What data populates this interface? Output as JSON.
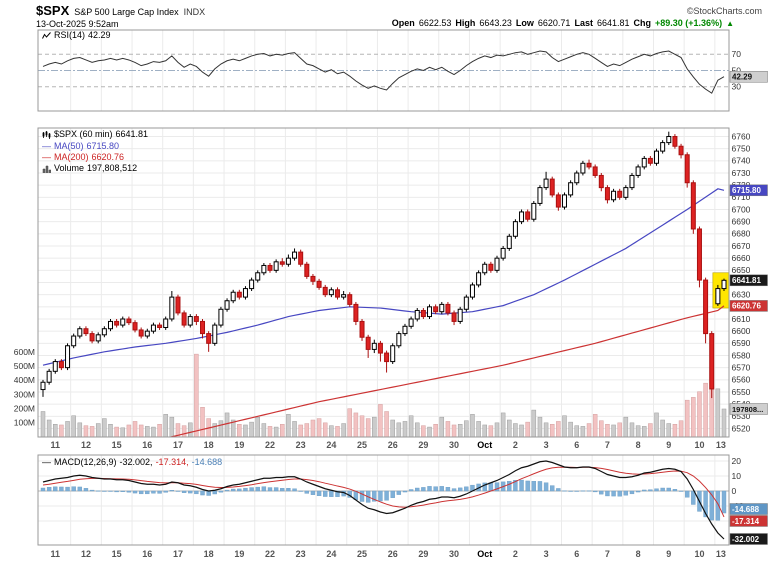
{
  "header": {
    "symbol": "$SPX",
    "name": "S&P 500 Large Cap Index",
    "exchange": "INDX",
    "datetime": "13-Oct-2025 9:52am",
    "copyright": "©StockCharts.com",
    "quote": {
      "open_label": "Open",
      "open": "6622.53",
      "high_label": "High",
      "high": "6643.23",
      "low_label": "Low",
      "low": "6620.71",
      "last_label": "Last",
      "last": "6641.81",
      "chg_label": "Chg",
      "chg": "+89.30 (+1.36%)",
      "direction": "▲"
    }
  },
  "legends": {
    "rsi": {
      "label": "RSI(14)",
      "value": "42.29"
    },
    "price": {
      "symbol": "$SPX (60 min)",
      "value": "6641.81"
    },
    "ma50": {
      "dash": "—",
      "label": "MA(50)",
      "value": "6715.80"
    },
    "ma200": {
      "dash": "—",
      "label": "MA(200)",
      "value": "6620.76"
    },
    "volume": {
      "label": "Volume",
      "value": "197,808,512"
    },
    "macd": {
      "dash": "—",
      "label": "MACD(12,26,9)",
      "macd_value": "-32.002,",
      "signal_value": "-17.314,",
      "hist_value": "-14.688"
    }
  },
  "badges": {
    "rsi": "42.29",
    "ma50": "6715.80",
    "last": "6641.81",
    "ma200": "6620.76",
    "volume": "197808...",
    "macd_hist": "-14.688",
    "macd_signal": "-17.314",
    "macd_line": "-32.002"
  },
  "colors": {
    "axis_text": "#333333",
    "grid": "#ebebeb",
    "panel_border": "#999999",
    "ma50": "#4747c2",
    "ma200": "#cc3333",
    "down_fill": "#dd2222",
    "down_stroke": "#aa1111",
    "vol_up": "#cbcbcb",
    "vol_down": "#f2c2c2",
    "hist": "#7fb0d8",
    "hist_stroke": "#6b9dc4",
    "hist_badge": "#5f96c5",
    "badge_gray": "#cfcfcf",
    "highlight": "#ffe600",
    "chg_green": "#008800"
  },
  "chart_data": {
    "bars_per_day": 5,
    "x_labels": [
      "11",
      "12",
      "15",
      "16",
      "17",
      "18",
      "19",
      "22",
      "23",
      "24",
      "25",
      "26",
      "29",
      "30",
      "Oct",
      "2",
      "3",
      "6",
      "7",
      "8",
      "9",
      "10",
      "13"
    ],
    "axes": {
      "price_min": 6513,
      "price_max": 6767,
      "volume_max": 600,
      "rsi_range": [
        0,
        100
      ],
      "macd_range": [
        -36,
        24
      ]
    },
    "price": {
      "type": "candlestick",
      "interval": "60 min",
      "candles": [
        [
          6552,
          6560,
          6546,
          6558
        ],
        [
          6558,
          6569,
          6556,
          6567
        ],
        [
          6567,
          6577,
          6565,
          6575
        ],
        [
          6575,
          6577,
          6568,
          6570
        ],
        [
          6570,
          6590,
          6568,
          6588
        ],
        [
          6588,
          6598,
          6586,
          6596
        ],
        [
          6596,
          6604,
          6594,
          6602
        ],
        [
          6602,
          6604,
          6596,
          6598
        ],
        [
          6598,
          6600,
          6590,
          6592
        ],
        [
          6592,
          6599,
          6590,
          6597
        ],
        [
          6597,
          6604,
          6595,
          6602
        ],
        [
          6602,
          6610,
          6600,
          6608
        ],
        [
          6608,
          6610,
          6603,
          6605
        ],
        [
          6605,
          6612,
          6603,
          6610
        ],
        [
          6610,
          6612,
          6605,
          6607
        ],
        [
          6607,
          6609,
          6599,
          6601
        ],
        [
          6601,
          6603,
          6594,
          6596
        ],
        [
          6596,
          6602,
          6594,
          6600
        ],
        [
          6600,
          6607,
          6598,
          6605
        ],
        [
          6605,
          6607,
          6601,
          6603
        ],
        [
          6603,
          6612,
          6601,
          6610
        ],
        [
          6610,
          6633,
          6608,
          6628
        ],
        [
          6628,
          6630,
          6613,
          6615
        ],
        [
          6615,
          6617,
          6603,
          6605
        ],
        [
          6605,
          6614,
          6603,
          6612
        ],
        [
          6612,
          6614,
          6605,
          6608
        ],
        [
          6608,
          6610,
          6594,
          6598
        ],
        [
          6598,
          6600,
          6583,
          6590
        ],
        [
          6590,
          6607,
          6588,
          6605
        ],
        [
          6605,
          6620,
          6603,
          6618
        ],
        [
          6618,
          6627,
          6616,
          6625
        ],
        [
          6625,
          6634,
          6623,
          6632
        ],
        [
          6632,
          6634,
          6626,
          6628
        ],
        [
          6628,
          6637,
          6626,
          6635
        ],
        [
          6635,
          6644,
          6633,
          6642
        ],
        [
          6642,
          6650,
          6640,
          6648
        ],
        [
          6648,
          6656,
          6646,
          6654
        ],
        [
          6654,
          6656,
          6648,
          6650
        ],
        [
          6650,
          6659,
          6648,
          6657
        ],
        [
          6657,
          6660,
          6653,
          6655
        ],
        [
          6655,
          6663,
          6653,
          6660
        ],
        [
          6660,
          6668,
          6658,
          6665
        ],
        [
          6665,
          6667,
          6653,
          6655
        ],
        [
          6655,
          6657,
          6643,
          6645
        ],
        [
          6645,
          6647,
          6638,
          6641
        ],
        [
          6641,
          6643,
          6634,
          6636
        ],
        [
          6636,
          6638,
          6628,
          6630
        ],
        [
          6630,
          6636,
          6628,
          6634
        ],
        [
          6634,
          6636,
          6626,
          6628
        ],
        [
          6628,
          6633,
          6626,
          6630
        ],
        [
          6630,
          6632,
          6620,
          6622
        ],
        [
          6622,
          6624,
          6605,
          6608
        ],
        [
          6608,
          6610,
          6592,
          6595
        ],
        [
          6595,
          6597,
          6578,
          6585
        ],
        [
          6585,
          6593,
          6582,
          6590
        ],
        [
          6590,
          6592,
          6575,
          6582
        ],
        [
          6582,
          6584,
          6566,
          6575
        ],
        [
          6575,
          6590,
          6573,
          6588
        ],
        [
          6588,
          6600,
          6586,
          6598
        ],
        [
          6598,
          6606,
          6596,
          6604
        ],
        [
          6604,
          6612,
          6602,
          6610
        ],
        [
          6610,
          6619,
          6608,
          6617
        ],
        [
          6617,
          6619,
          6610,
          6612
        ],
        [
          6612,
          6622,
          6610,
          6620
        ],
        [
          6620,
          6622,
          6614,
          6616
        ],
        [
          6616,
          6624,
          6614,
          6622
        ],
        [
          6622,
          6624,
          6613,
          6615
        ],
        [
          6615,
          6617,
          6605,
          6608
        ],
        [
          6608,
          6620,
          6606,
          6618
        ],
        [
          6618,
          6630,
          6616,
          6628
        ],
        [
          6628,
          6640,
          6626,
          6638
        ],
        [
          6638,
          6650,
          6636,
          6648
        ],
        [
          6648,
          6657,
          6646,
          6655
        ],
        [
          6655,
          6657,
          6648,
          6650
        ],
        [
          6650,
          6662,
          6648,
          6660
        ],
        [
          6660,
          6670,
          6658,
          6668
        ],
        [
          6668,
          6680,
          6666,
          6678
        ],
        [
          6678,
          6692,
          6676,
          6690
        ],
        [
          6690,
          6700,
          6688,
          6698
        ],
        [
          6698,
          6700,
          6690,
          6692
        ],
        [
          6692,
          6707,
          6690,
          6705
        ],
        [
          6705,
          6720,
          6703,
          6718
        ],
        [
          6718,
          6731,
          6716,
          6725
        ],
        [
          6725,
          6727,
          6710,
          6712
        ],
        [
          6712,
          6714,
          6699,
          6702
        ],
        [
          6702,
          6714,
          6700,
          6712
        ],
        [
          6712,
          6724,
          6710,
          6722
        ],
        [
          6722,
          6732,
          6720,
          6730
        ],
        [
          6730,
          6740,
          6728,
          6738
        ],
        [
          6738,
          6741,
          6733,
          6735
        ],
        [
          6735,
          6737,
          6726,
          6728
        ],
        [
          6728,
          6730,
          6715,
          6718
        ],
        [
          6718,
          6720,
          6705,
          6708
        ],
        [
          6708,
          6717,
          6706,
          6715
        ],
        [
          6715,
          6717,
          6708,
          6710
        ],
        [
          6710,
          6720,
          6708,
          6718
        ],
        [
          6718,
          6730,
          6716,
          6728
        ],
        [
          6728,
          6737,
          6726,
          6735
        ],
        [
          6735,
          6744,
          6733,
          6742
        ],
        [
          6742,
          6744,
          6736,
          6738
        ],
        [
          6738,
          6750,
          6736,
          6748
        ],
        [
          6748,
          6757,
          6746,
          6755
        ],
        [
          6755,
          6764,
          6753,
          6760
        ],
        [
          6760,
          6762,
          6750,
          6752
        ],
        [
          6752,
          6754,
          6742,
          6745
        ],
        [
          6745,
          6747,
          6718,
          6722
        ],
        [
          6722,
          6724,
          6680,
          6684
        ],
        [
          6684,
          6686,
          6636,
          6642
        ],
        [
          6642,
          6644,
          6590,
          6598
        ],
        [
          6598,
          6600,
          6545,
          6552.51
        ],
        [
          6622.53,
          6638,
          6620.71,
          6635
        ],
        [
          6635,
          6643.23,
          6633,
          6641.81
        ]
      ],
      "volume": [
        180,
        120,
        90,
        85,
        110,
        150,
        100,
        80,
        75,
        95,
        130,
        90,
        70,
        65,
        85,
        110,
        85,
        75,
        70,
        90,
        160,
        140,
        95,
        80,
        100,
        585,
        210,
        130,
        95,
        115,
        170,
        120,
        90,
        85,
        105,
        140,
        95,
        75,
        70,
        90,
        160,
        110,
        85,
        95,
        120,
        130,
        100,
        80,
        75,
        95,
        200,
        170,
        150,
        130,
        140,
        230,
        180,
        120,
        100,
        110,
        150,
        100,
        80,
        70,
        90,
        140,
        110,
        85,
        90,
        115,
        160,
        110,
        85,
        80,
        100,
        170,
        120,
        95,
        85,
        105,
        190,
        140,
        100,
        90,
        110,
        150,
        105,
        80,
        75,
        95,
        160,
        115,
        90,
        85,
        100,
        140,
        100,
        80,
        75,
        95,
        170,
        120,
        95,
        90,
        115,
        260,
        280,
        320,
        380,
        420,
        340,
        197.8
      ],
      "volume_unit": "M",
      "ma50_daily": [
        6572,
        6578,
        6583,
        6587,
        6590,
        6594,
        6599,
        6605,
        6612,
        6617,
        6620,
        6619,
        6616,
        6614,
        6616,
        6621,
        6630,
        6642,
        6655,
        6668,
        6684,
        6700,
        6717,
        6715.8
      ],
      "ma200_daily": [
        6488,
        6494,
        6500,
        6506,
        6512,
        6518,
        6524,
        6530,
        6536,
        6542,
        6547,
        6552,
        6557,
        6562,
        6567,
        6572,
        6578,
        6584,
        6590,
        6597,
        6604,
        6611,
        6617,
        6620.76
      ],
      "ma50_last": 6715.8,
      "ma200_last": 6620.76,
      "last": 6641.81,
      "volume_last": 197.8,
      "y_ticks": [
        "6760",
        "6750",
        "6740",
        "6730",
        "6720",
        "6710",
        "6700",
        "6690",
        "6680",
        "6670",
        "6660",
        "6650",
        "6640",
        "6630",
        "6620",
        "6610",
        "6600",
        "6590",
        "6580",
        "6570",
        "6560",
        "6550",
        "6540",
        "6530",
        "6520"
      ],
      "vol_ticks": [
        "600M",
        "500M",
        "400M",
        "300M",
        "200M",
        "100M"
      ]
    },
    "rsi": {
      "type": "line",
      "values": [
        55,
        58,
        60,
        58,
        62,
        65,
        66,
        63,
        60,
        62,
        63,
        65,
        63,
        65,
        63,
        60,
        56,
        58,
        61,
        60,
        62,
        68,
        60,
        54,
        58,
        55,
        48,
        43,
        52,
        58,
        62,
        64,
        62,
        65,
        68,
        70,
        71,
        68,
        70,
        69,
        71,
        72,
        65,
        58,
        56,
        52,
        48,
        51,
        46,
        48,
        43,
        37,
        32,
        28,
        31,
        28,
        26,
        34,
        41,
        45,
        49,
        52,
        50,
        54,
        51,
        54,
        49,
        45,
        50,
        56,
        61,
        65,
        68,
        66,
        69,
        68,
        70,
        72,
        73,
        70,
        72,
        74,
        73,
        66,
        61,
        64,
        67,
        70,
        72,
        70,
        65,
        60,
        55,
        58,
        56,
        60,
        64,
        67,
        70,
        68,
        71,
        73,
        74,
        70,
        66,
        52,
        42,
        33,
        27,
        22,
        38,
        42.29
      ],
      "last": 42.29,
      "ticks": [
        "70",
        "50",
        "30"
      ]
    },
    "macd": {
      "type": "line+histogram",
      "macd": [
        6,
        7,
        8,
        8.5,
        9,
        10,
        10.5,
        10,
        9,
        8.5,
        8,
        8,
        7.5,
        7.5,
        7,
        6,
        5,
        4.5,
        4.5,
        4,
        4.5,
        6,
        5.5,
        4,
        3.5,
        2.5,
        1,
        0,
        0.5,
        1.5,
        3,
        4,
        4.5,
        5.5,
        6.5,
        7.5,
        8.5,
        8.5,
        9,
        9,
        9.5,
        9.5,
        8,
        6,
        4.5,
        3,
        1.5,
        0.5,
        -0.5,
        -1,
        -3,
        -6,
        -9,
        -11.5,
        -12.5,
        -14,
        -15,
        -14.5,
        -13,
        -11.5,
        -9.5,
        -8,
        -7,
        -5.5,
        -5,
        -4,
        -4,
        -4.5,
        -3.5,
        -2,
        0,
        2,
        4,
        5.5,
        7,
        9,
        11,
        13.5,
        15.5,
        16.5,
        18,
        19.5,
        20,
        19,
        17.5,
        16,
        15.5,
        15.5,
        16,
        16,
        15,
        13,
        11,
        10,
        9,
        9,
        9.5,
        10.5,
        12,
        12.5,
        13.5,
        14.5,
        15,
        14.5,
        13,
        8,
        1,
        -7,
        -15,
        -22,
        -28,
        -32.002
      ],
      "signal": [
        4,
        4.5,
        5.2,
        5.8,
        6.4,
        7.1,
        7.8,
        8.2,
        8.4,
        8.4,
        8.3,
        8.2,
        8.1,
        8,
        7.8,
        7.4,
        6.9,
        6.4,
        6,
        5.6,
        5.4,
        5.5,
        5.5,
        5.2,
        4.9,
        4.4,
        3.7,
        3,
        2.5,
        2.3,
        2.4,
        2.7,
        3.1,
        3.6,
        4.2,
        4.9,
        5.6,
        6.2,
        6.7,
        7.2,
        7.7,
        8,
        8,
        7.6,
        7,
        6.2,
        5.2,
        4.3,
        3.3,
        2.4,
        1.3,
        -0.2,
        -2,
        -3.9,
        -5.6,
        -7.3,
        -8.8,
        -10,
        -10.6,
        -10.8,
        -10.5,
        -10,
        -9.4,
        -8.6,
        -7.9,
        -7.1,
        -6.5,
        -6.1,
        -5.6,
        -4.8,
        -3.9,
        -2.7,
        -1.4,
        0,
        1.4,
        2.9,
        4.5,
        6.3,
        8.2,
        9.8,
        11.5,
        13.1,
        14.5,
        15.4,
        15.8,
        15.8,
        15.8,
        15.7,
        15.8,
        15.8,
        15.6,
        15.1,
        14.3,
        13.4,
        12.5,
        11.8,
        11.4,
        11.2,
        11.3,
        11.6,
        12,
        12.5,
        13,
        13.3,
        13.2,
        12.2,
        10,
        6.6,
        2.3,
        -2.6,
        -8.5,
        -17.314
      ],
      "last_macd": -32.002,
      "last_signal": -17.314,
      "last_hist": -14.688,
      "ticks": [
        "20",
        "10",
        "0",
        "-10",
        "-20"
      ]
    },
    "highlight": {
      "bar_start": 110,
      "bar_end": 111,
      "price_top": 6648,
      "price_bottom": 6619
    }
  }
}
